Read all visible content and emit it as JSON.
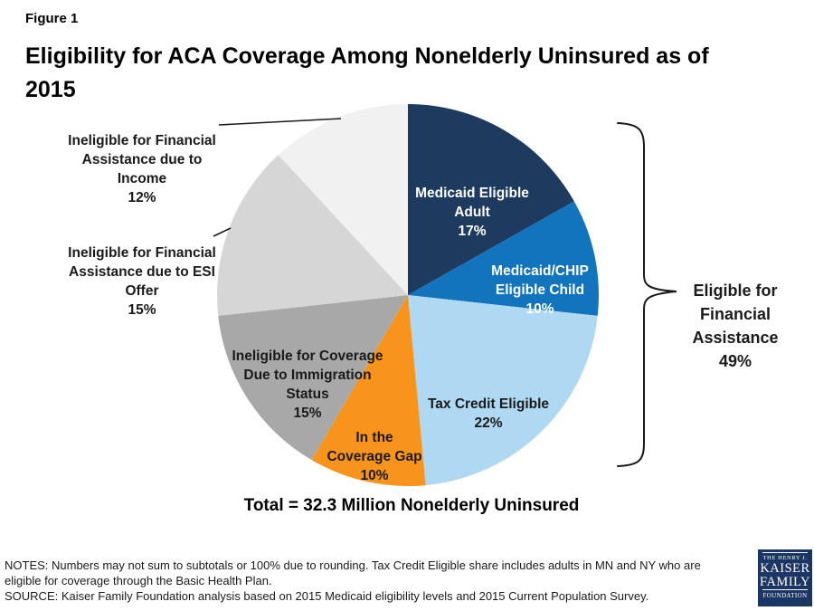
{
  "figure_label": "Figure 1",
  "title": "Eligibility for ACA Coverage Among Nonelderly Uninsured as of\n2015",
  "chart_data": {
    "type": "pie",
    "title": "Eligibility for ACA Coverage Among Nonelderly Uninsured as of 2015",
    "total_label": "Total = 32.3 Million Nonelderly Uninsured",
    "start_angle": "12 o'clock, clockwise",
    "slices": [
      {
        "name": "Medicaid Eligible Adult",
        "value": 17,
        "pct": "17%",
        "color": "#1E3A5F",
        "label_lines": "Medicaid Eligible\nAdult",
        "label_color": "#FFFFFF",
        "label_placement": "inside"
      },
      {
        "name": "Medicaid/CHIP Eligible Child",
        "value": 10,
        "pct": "10%",
        "color": "#1274BC",
        "label_lines": "Medicaid/CHIP\nEligible Child",
        "label_color": "#FFFFFF",
        "label_placement": "inside"
      },
      {
        "name": "Tax Credit Eligible",
        "value": 22,
        "pct": "22%",
        "color": "#AFD8F2",
        "label_lines": "Tax Credit Eligible",
        "label_color": "#1A1A1A",
        "label_placement": "inside"
      },
      {
        "name": "In the Coverage Gap",
        "value": 10,
        "pct": "10%",
        "color": "#F8941C",
        "label_lines": "In the\nCoverage Gap",
        "label_color": "#1A1A1A",
        "label_placement": "inside"
      },
      {
        "name": "Ineligible for Coverage Due to Immigration Status",
        "value": 15,
        "pct": "15%",
        "color": "#A8A8A8",
        "label_lines": "Ineligible for Coverage\nDue to Immigration\nStatus",
        "label_color": "#1A1A1A",
        "label_placement": "inside"
      },
      {
        "name": "Ineligible for Financial Assistance due to ESI Offer",
        "value": 15,
        "pct": "15%",
        "color": "#D6D6D6",
        "label_lines": "Ineligible for Financial\nAssistance due to ESI\nOffer",
        "label_color": "#1A1A1A",
        "label_placement": "outside-left"
      },
      {
        "name": "Ineligible for Financial Assistance due to Income",
        "value": 12,
        "pct": "12%",
        "color": "#F1F1F1",
        "label_lines": "Ineligible for Financial\nAssistance due to\nIncome",
        "label_color": "#1A1A1A",
        "label_placement": "outside-left"
      }
    ],
    "bracket_annotation": {
      "label": "Eligible for\nFinancial\nAssistance",
      "pct": "49%",
      "covers_slices": [
        "Medicaid Eligible Adult",
        "Medicaid/CHIP Eligible Child",
        "Tax Credit Eligible"
      ]
    }
  },
  "notes": "NOTES: Numbers may not sum to subtotals or 100% due to rounding. Tax Credit Eligible share includes adults in MN and NY who are\neligible for coverage through the Basic Health Plan.",
  "source": "SOURCE: Kaiser Family Foundation analysis based on 2015 Medicaid eligibility levels and 2015 Current Population Survey.",
  "logo": {
    "line1": "THE HENRY J.",
    "line2": "KAISER",
    "line3": "FAMILY",
    "line4": "FOUNDATION",
    "bg_color": "#1B3564"
  }
}
